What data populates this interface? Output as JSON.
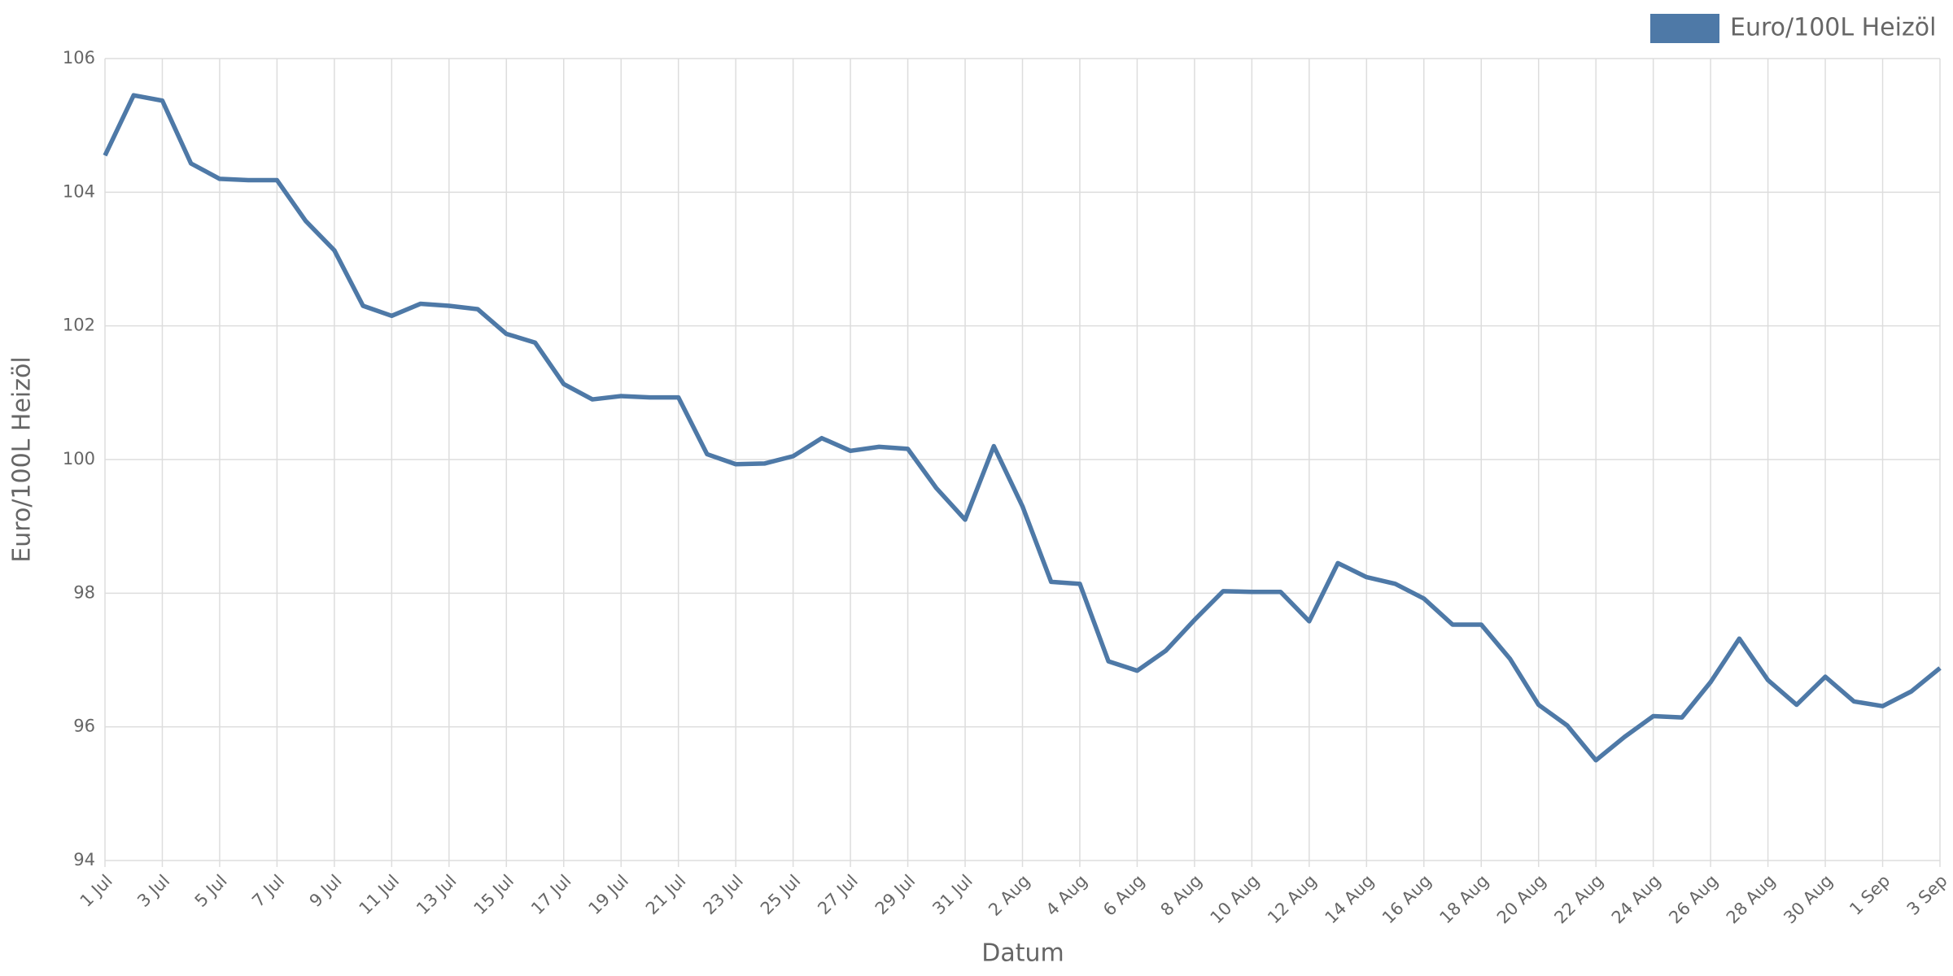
{
  "chart_data": {
    "type": "line",
    "y_label": "Euro/100L Heizöl",
    "x_label": "Datum",
    "categories": [
      "1 Jul",
      null,
      "3 Jul",
      null,
      "5 Jul",
      null,
      "7 Jul",
      null,
      "9 Jul",
      null,
      "11 Jul",
      null,
      "13 Jul",
      null,
      "15 Jul",
      null,
      "17 Jul",
      null,
      "19 Jul",
      null,
      "21 Jul",
      null,
      "23 Jul",
      null,
      "25 Jul",
      null,
      "27 Jul",
      null,
      "29 Jul",
      null,
      "31 Jul",
      null,
      "2 Aug",
      null,
      "4 Aug",
      null,
      "6 Aug",
      null,
      "8 Aug",
      null,
      "10 Aug",
      null,
      "12 Aug",
      null,
      "14 Aug",
      null,
      "16 Aug",
      null,
      "18 Aug",
      null,
      "20 Aug",
      null,
      "22 Aug",
      null,
      "24 Aug",
      null,
      "26 Aug",
      null,
      "28 Aug",
      null,
      "30 Aug",
      null,
      "1 Sep",
      null,
      "3 Sep"
    ],
    "series": [
      {
        "name": "Euro/100L Heizöl",
        "color": "#4e79a7",
        "values": [
          104.55,
          105.45,
          105.37,
          104.43,
          104.2,
          104.18,
          104.18,
          103.57,
          103.13,
          102.3,
          102.15,
          102.33,
          102.3,
          102.25,
          101.88,
          101.75,
          101.13,
          100.9,
          100.95,
          100.93,
          100.93,
          100.08,
          99.93,
          99.94,
          100.05,
          100.32,
          100.13,
          100.19,
          100.16,
          99.57,
          99.1,
          100.2,
          99.3,
          98.17,
          98.14,
          96.98,
          96.84,
          97.14,
          97.6,
          98.03,
          98.02,
          98.02,
          97.58,
          98.45,
          98.24,
          98.14,
          97.92,
          97.53,
          97.53,
          97.02,
          96.33,
          96.02,
          95.5,
          95.85,
          96.16,
          96.14,
          96.67,
          97.32,
          96.7,
          96.33,
          96.75,
          96.38,
          96.31,
          96.53,
          96.88
        ]
      }
    ],
    "ylim": [
      94,
      106
    ],
    "yticks": [
      94,
      96,
      98,
      100,
      102,
      104,
      106
    ],
    "grid": true,
    "legend": "top-right"
  }
}
